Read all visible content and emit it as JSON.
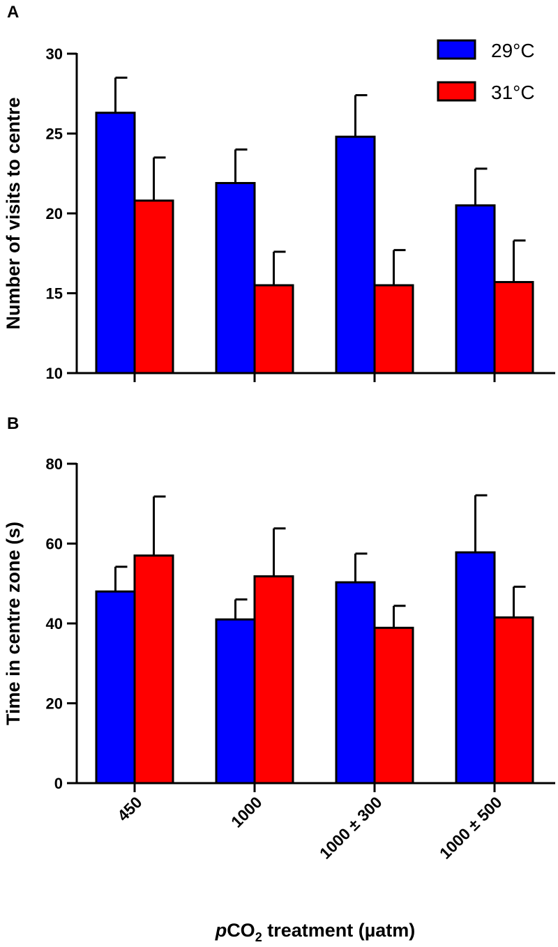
{
  "figure": {
    "xlabel_prefix": "p",
    "xlabel_mid": "CO",
    "xlabel_sub": "2",
    "xlabel_rest": " treatment (µatm)"
  },
  "legend": {
    "position": "top-right",
    "items": [
      {
        "label": "29°C",
        "color": "#0000ff"
      },
      {
        "label": "31°C",
        "color": "#ff0000"
      }
    ]
  },
  "chart_data": [
    {
      "panel": "A",
      "type": "bar",
      "ylabel": "Number of visits to centre",
      "ylim": [
        10,
        30
      ],
      "yticks": [
        10,
        15,
        20,
        25,
        30
      ],
      "categories": [
        "450",
        "1000",
        "1000 ± 300",
        "1000 ± 500"
      ],
      "series": [
        {
          "name": "29°C",
          "color": "#0000ff",
          "values": [
            26.3,
            21.9,
            24.8,
            20.5
          ],
          "errors": [
            2.2,
            2.1,
            2.6,
            2.3
          ]
        },
        {
          "name": "31°C",
          "color": "#ff0000",
          "values": [
            20.8,
            15.5,
            15.5,
            15.7
          ],
          "errors": [
            2.7,
            2.1,
            2.2,
            2.6
          ]
        }
      ]
    },
    {
      "panel": "B",
      "type": "bar",
      "ylabel": "Time in centre zone (s)",
      "ylim": [
        0,
        80
      ],
      "yticks": [
        0,
        20,
        40,
        60,
        80
      ],
      "categories": [
        "450",
        "1000",
        "1000 ± 300",
        "1000 ± 500"
      ],
      "series": [
        {
          "name": "29°C",
          "color": "#0000ff",
          "values": [
            48,
            41,
            50.3,
            57.8
          ],
          "errors": [
            6.2,
            5.0,
            7.2,
            14.3
          ]
        },
        {
          "name": "31°C",
          "color": "#ff0000",
          "values": [
            57,
            51.8,
            38.9,
            41.5
          ],
          "errors": [
            14.8,
            12.0,
            5.5,
            7.7
          ]
        }
      ]
    }
  ]
}
